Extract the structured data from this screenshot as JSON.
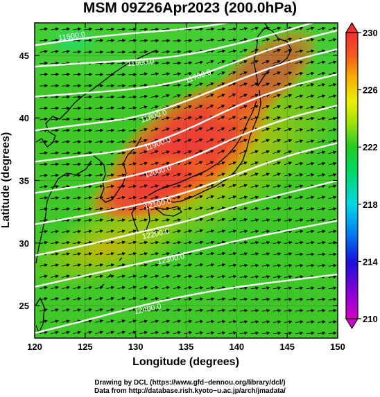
{
  "chart_data": {
    "type": "heatmap",
    "title": "MSM 09Z26Apr2023 (200.0hPa)",
    "xlabel": "Longitude (degrees)",
    "ylabel": "Latitude  (degrees)",
    "xlim": [
      120,
      150
    ],
    "ylim": [
      22.4,
      47.6
    ],
    "x_ticks": [
      120,
      125,
      130,
      135,
      140,
      145,
      150
    ],
    "y_ticks": [
      25,
      30,
      35,
      40,
      45
    ],
    "colorbar": {
      "range": [
        210,
        230
      ],
      "ticks": [
        210,
        214,
        218,
        222,
        226,
        230
      ],
      "position": "right"
    },
    "contours": [
      {
        "label": "11500.0",
        "value": 11500,
        "points": [
          [
            120,
            45.8
          ],
          [
            125,
            46.4
          ],
          [
            130,
            46.8
          ],
          [
            135,
            47.1
          ],
          [
            140,
            47.7
          ],
          [
            145,
            48.6
          ],
          [
            150,
            49.5
          ]
        ]
      },
      {
        "label": "11600.0",
        "value": 11600,
        "points": [
          [
            120,
            44.1
          ],
          [
            125,
            44.4
          ],
          [
            130,
            44.6
          ],
          [
            135,
            45.0
          ],
          [
            140,
            45.9
          ],
          [
            145,
            47.0
          ],
          [
            150,
            48.2
          ]
        ]
      },
      {
        "label": "11700.0",
        "value": 11700,
        "points": [
          [
            120,
            41.7
          ],
          [
            125,
            42.0
          ],
          [
            130,
            42.3
          ],
          [
            135,
            43.0
          ],
          [
            140,
            44.5
          ],
          [
            145,
            46.0
          ],
          [
            150,
            47.0
          ]
        ]
      },
      {
        "label": "11800.0",
        "value": 11800,
        "points": [
          [
            120,
            39.0
          ],
          [
            125,
            39.5
          ],
          [
            130,
            40.0
          ],
          [
            135,
            41.3
          ],
          [
            140,
            43.0
          ],
          [
            145,
            44.5
          ],
          [
            150,
            45.5
          ]
        ]
      },
      {
        "label": "11900.0",
        "value": 11900,
        "points": [
          [
            120,
            36.5
          ],
          [
            125,
            37.0
          ],
          [
            130,
            37.5
          ],
          [
            135,
            39.0
          ],
          [
            140,
            41.0
          ],
          [
            145,
            42.5
          ],
          [
            150,
            43.5
          ]
        ]
      },
      {
        "label": "12000.0",
        "value": 12000,
        "points": [
          [
            120,
            34.0
          ],
          [
            125,
            34.6
          ],
          [
            130,
            35.4
          ],
          [
            135,
            36.6
          ],
          [
            140,
            38.5
          ],
          [
            145,
            40.0
          ],
          [
            150,
            41.0
          ]
        ]
      },
      {
        "label": "12100.0",
        "value": 12100,
        "points": [
          [
            120,
            31.5
          ],
          [
            125,
            32.2
          ],
          [
            130,
            33.0
          ],
          [
            135,
            34.0
          ],
          [
            140,
            35.5
          ],
          [
            145,
            37.0
          ],
          [
            150,
            38.0
          ]
        ]
      },
      {
        "label": "12200.0",
        "value": 12200,
        "points": [
          [
            120,
            29.0
          ],
          [
            125,
            29.8
          ],
          [
            130,
            30.8
          ],
          [
            135,
            31.7
          ],
          [
            140,
            33.0
          ],
          [
            145,
            34.0
          ],
          [
            150,
            35.0
          ]
        ]
      },
      {
        "label": "12300.0",
        "value": 12300,
        "points": [
          [
            120,
            26.5
          ],
          [
            125,
            27.4
          ],
          [
            130,
            28.3
          ],
          [
            135,
            29.2
          ],
          [
            140,
            30.2
          ],
          [
            145,
            31.0
          ],
          [
            150,
            31.8
          ]
        ]
      },
      {
        "label": "12400.0",
        "value": 12400,
        "points": [
          [
            120,
            22.8
          ],
          [
            125,
            23.8
          ],
          [
            130,
            24.9
          ],
          [
            135,
            25.8
          ],
          [
            140,
            26.5
          ],
          [
            145,
            27.0
          ],
          [
            150,
            27.5
          ]
        ]
      }
    ],
    "contour_label_spots": [
      {
        "label": "11500.0",
        "lon": 123.7,
        "lat": 46.5
      },
      {
        "label": "11600.0",
        "lon": 130.5,
        "lat": 44.4
      },
      {
        "label": "11700.0",
        "lon": 136.2,
        "lat": 43.3
      },
      {
        "label": "11800.0",
        "lon": 131.8,
        "lat": 40.1
      },
      {
        "label": "11900.0",
        "lon": 132.2,
        "lat": 37.9
      },
      {
        "label": "12000.0",
        "lon": 132.2,
        "lat": 35.7
      },
      {
        "label": "12100.0",
        "lon": 132.2,
        "lat": 33.1
      },
      {
        "label": "12200.0",
        "lon": 132.0,
        "lat": 30.7
      },
      {
        "label": "12300.0",
        "lon": 133.5,
        "lat": 28.7
      },
      {
        "label": "12400.0",
        "lon": 131.2,
        "lat": 24.7
      }
    ]
  },
  "credits": {
    "line1": "Drawing by DCL (https://www.gfd−dennou.org/library/dcl/)",
    "line2": "Data from http://database.rish.kyoto−u.ac.jp/arch/jmadata/"
  }
}
